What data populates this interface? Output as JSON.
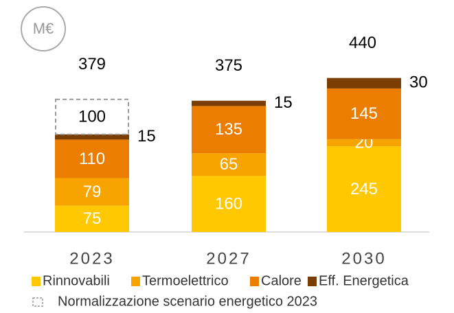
{
  "chart_data": {
    "type": "stacked_bar",
    "unit": "M€",
    "categories": [
      "2023",
      "2027",
      "2030"
    ],
    "totals": [
      379,
      375,
      440
    ],
    "series": [
      {
        "name": "Rinnovabili",
        "color": "#ffc800",
        "values": [
          75,
          160,
          245
        ]
      },
      {
        "name": "Termoelettrico",
        "color": "#f7a400",
        "values": [
          79,
          65,
          20
        ]
      },
      {
        "name": "Calore",
        "color": "#eb7d00",
        "values": [
          110,
          135,
          145
        ]
      },
      {
        "name": "Eff. Energetica",
        "color": "#7a3e05",
        "values": [
          15,
          15,
          30
        ],
        "label_outside": true
      },
      {
        "name": "Normalizzazione scenario energetico 2023",
        "color": "#999999",
        "values": [
          100,
          null,
          null
        ],
        "dashed": true
      }
    ]
  }
}
